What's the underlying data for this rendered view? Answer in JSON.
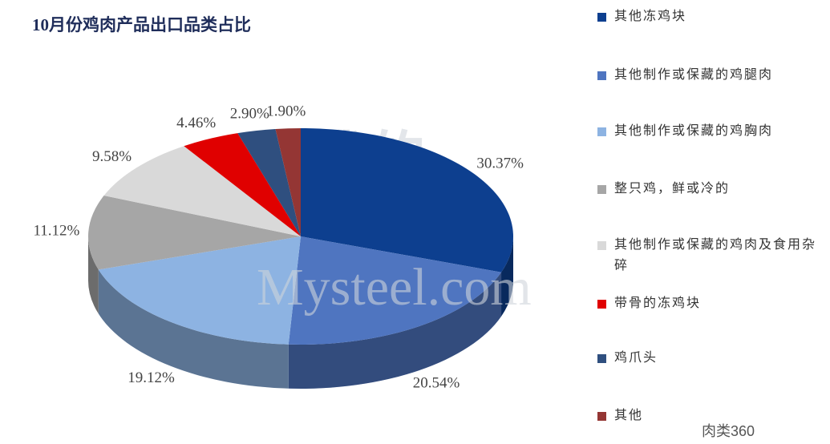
{
  "chart_data": {
    "type": "pie3d",
    "title": "10月份鸡肉产品出口品类占比",
    "categories": [
      "其他冻鸡块",
      "其他制作或保藏的鸡腿肉",
      "其他制作或保藏的鸡胸肉",
      "整只鸡，鲜或冷的",
      "其他制作或保藏的鸡肉及食用杂碎",
      "带骨的冻鸡块",
      "鸡爪头",
      "其他"
    ],
    "values": [
      30.37,
      20.54,
      19.12,
      11.12,
      9.58,
      4.46,
      2.9,
      1.9
    ],
    "value_labels": [
      "30.37%",
      "20.54%",
      "19.12%",
      "11.12%",
      "9.58%",
      "4.46%",
      "2.90%",
      "1.90%"
    ],
    "colors": [
      "#0d3f8f",
      "#4f75c0",
      "#8db3e2",
      "#a6a6a6",
      "#d9d9d9",
      "#e00000",
      "#2f4f7f",
      "#943634"
    ],
    "legend": "right",
    "watermark": [
      "我的",
      "钢铁",
      "Mysteel.com"
    ],
    "source": "肉类360"
  }
}
